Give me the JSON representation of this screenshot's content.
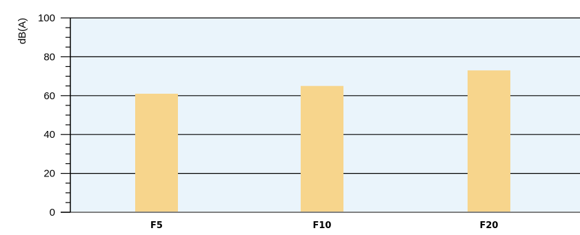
{
  "chart_data": {
    "type": "bar",
    "categories": [
      "F5",
      "F10",
      "F20"
    ],
    "values": [
      61,
      65,
      73
    ],
    "ylabel": "dB(A)",
    "xlabel": "",
    "ylim": [
      0,
      100
    ],
    "yticks": [
      0,
      20,
      40,
      60,
      80,
      100
    ],
    "grid": true,
    "colors": {
      "bar": "#f7d58c",
      "plot_background": "#eaf4fb",
      "gridline": "#000000",
      "baseline": "#808080"
    }
  }
}
